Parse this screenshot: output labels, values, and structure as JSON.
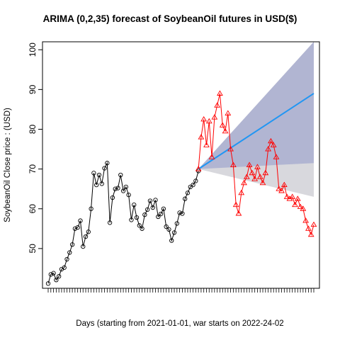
{
  "chart_data": {
    "type": "line",
    "title": "ARIMA (0,2,35) forecast of  SoybeanOil futures in USD($)",
    "xlabel": "Days (starting from 2021-01-01, war starts on 2022-24-02",
    "ylabel": "SoybeanOil Close price : (USD)",
    "xlim": [
      1,
      100
    ],
    "ylim": [
      40,
      102
    ],
    "yticks": [
      50,
      60,
      70,
      80,
      90,
      100
    ],
    "grid": false,
    "legend": "none",
    "series": [
      {
        "values": [
          41.2,
          43.5,
          43.8,
          42.1,
          43.0,
          44.8,
          45.2,
          47.3,
          49.0,
          51.0,
          55.0,
          55.3,
          57.0,
          50.5,
          53.0,
          54.2,
          60.0,
          69.0,
          66.0,
          68.5,
          66.3,
          70.2,
          71.5,
          56.5,
          62.8,
          65.0,
          65.2,
          68.5,
          64.5,
          65.5,
          63.5,
          57.2,
          61.0,
          57.8,
          55.8,
          55.0,
          58.5,
          59.8,
          62.0,
          60.3,
          62.2,
          58.0,
          58.7,
          60.0,
          55.5,
          54.8,
          52.0,
          54.0,
          56.3,
          59.0,
          58.8,
          62.5,
          64.0,
          65.5,
          66.0,
          67.0,
          69.5
        ]
      },
      {
        "x": [
          57,
          58,
          59,
          60,
          61,
          62,
          63,
          64,
          65,
          66,
          67,
          68,
          69,
          70,
          71,
          72,
          73,
          74,
          75,
          76,
          77,
          78,
          79,
          80,
          81,
          82,
          83,
          84,
          85,
          86,
          87,
          88,
          89,
          90,
          91,
          92,
          93,
          94,
          95,
          96,
          97,
          98,
          99,
          100
        ],
        "values": [
          70.0,
          78.0,
          82.5,
          76.0,
          82.0,
          73.0,
          83.0,
          86.0,
          89.0,
          81.0,
          79.5,
          84.0,
          75.0,
          71.0,
          61.0,
          58.8,
          64.0,
          66.5,
          68.0,
          71.0,
          69.0,
          67.5,
          70.5,
          68.0,
          66.5,
          69.0,
          75.0,
          77.0,
          76.0,
          73.0,
          65.0,
          64.5,
          66.0,
          63.0,
          62.5,
          63.0,
          61.0,
          62.5,
          60.5,
          60.0,
          57.0,
          55.0,
          53.5,
          56.0
        ],
        "color": "#ff0000"
      },
      {
        "x": [
          57,
          100
        ],
        "values": [
          70.0,
          89.0
        ],
        "color": "#2196f3"
      }
    ],
    "bands": {
      "x": [
        57,
        100
      ],
      "inner80": {
        "lower": [
          70.0,
          71.5
        ],
        "upper": [
          70.0,
          102
        ]
      },
      "outer95": {
        "lower": [
          70.0,
          63.0
        ],
        "upper": [
          70.0,
          102
        ]
      },
      "colors": {
        "inner": "#b1b5d2",
        "outer": "#d8d8dd"
      }
    }
  }
}
